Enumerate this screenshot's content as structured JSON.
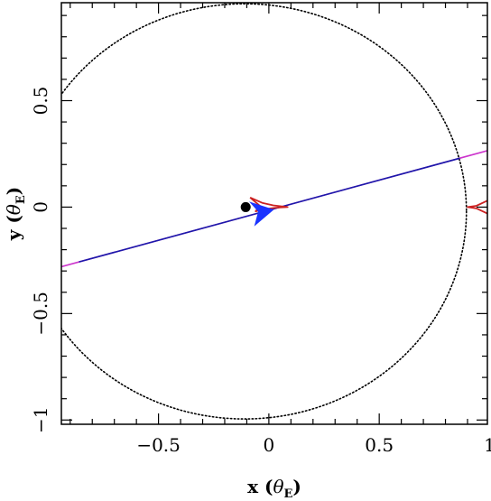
{
  "chart_data": {
    "type": "scatter",
    "title": "",
    "xlabel": "x (θE)",
    "ylabel": "y (θE)",
    "xlabel_parts": {
      "main": "x (",
      "sym": "θ",
      "sub": "E",
      "close": ")"
    },
    "ylabel_parts": {
      "main": "y (",
      "sym": "θ",
      "sub": "E",
      "close": ")"
    },
    "xlim": [
      -0.94,
      0.99
    ],
    "ylim": [
      -1.02,
      0.96
    ],
    "xticks": [
      {
        "value": -0.5,
        "label": "−0.5"
      },
      {
        "value": 0,
        "label": "0"
      },
      {
        "value": 0.5,
        "label": "0.5"
      },
      {
        "value": 1,
        "label": "1"
      }
    ],
    "yticks": [
      {
        "value": -1,
        "label": "−1"
      },
      {
        "value": -0.5,
        "label": "−0.5"
      },
      {
        "value": 0,
        "label": "0"
      },
      {
        "value": 0.5,
        "label": "0.5"
      }
    ],
    "minor_tick_step": 0.1,
    "grid": false,
    "einstein_ring": {
      "cx": -0.11,
      "cy": -0.02,
      "rx": 1.005,
      "ry": 0.975,
      "style": "dotted",
      "color": "#000000"
    },
    "lens_point": {
      "x": -0.105,
      "y": 0.0,
      "color": "#000000"
    },
    "source_trajectory": {
      "x": [
        -0.94,
        0.99
      ],
      "y": [
        -0.28,
        0.265
      ],
      "color_outer": "#cc33cc",
      "color_inner": "#1a1aaa",
      "inner_x_range": [
        -0.94,
        0.99
      ]
    },
    "caustic_central": {
      "color": "#cc2222",
      "points": [
        [
          -0.085,
          0.045
        ],
        [
          -0.03,
          0.02
        ],
        [
          0.02,
          0.008
        ],
        [
          0.085,
          0.0
        ],
        [
          0.03,
          -0.003
        ],
        [
          -0.02,
          -0.01
        ],
        [
          -0.06,
          -0.02
        ],
        [
          -0.04,
          0.005
        ],
        [
          -0.085,
          0.045
        ]
      ]
    },
    "caustic_planetary": {
      "color": "#cc2222",
      "points": [
        [
          0.99,
          0.03
        ],
        [
          0.94,
          0.006
        ],
        [
          0.9,
          0.0
        ],
        [
          0.94,
          -0.006
        ],
        [
          0.99,
          -0.03
        ]
      ]
    },
    "source_marker": {
      "x": -0.03,
      "y": -0.025,
      "color": "#1a33ff"
    }
  }
}
